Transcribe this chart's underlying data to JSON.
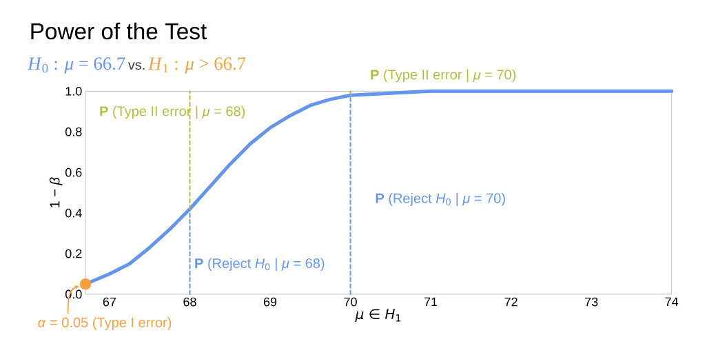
{
  "chart_data": {
    "type": "line",
    "title": "Power of the Test",
    "xlabel": "*μ* ∈ *H*$_{1}$",
    "ylabel": "1 − *β*",
    "xlim": [
      66.7,
      74
    ],
    "ylim": [
      0,
      1.0
    ],
    "xticks": [
      67,
      68,
      69,
      70,
      71,
      72,
      73,
      74
    ],
    "yticks": [
      {
        "value": 0,
        "label": "0.0"
      },
      0.2,
      0.4,
      0.6,
      0.8,
      {
        "value": 1.0,
        "label": "1.0"
      }
    ],
    "annotations": [
      "*H*$_{0}$ : *μ* = 66.7",
      "vs.",
      "*H*$_{1}$ : *μ* > 66.7",
      {
        "text": "*α* = 0.05  (Type I error)",
        "x": 66.7,
        "y": 0.05
      },
      {
        "text": "**P** (Type II error | *μ* = 68)",
        "x": 68,
        "y": 0.71
      },
      {
        "text": "**P** (Reject *H*$_{0}$ | *μ* = 68)",
        "x": 68,
        "y": 0.21
      },
      {
        "text": "**P** (Type II error | *μ* = 70)",
        "x": 70,
        "y": 0.985
      },
      {
        "text": "**P** (Reject *H*$_{0}$ | *μ* = 70)",
        "x": 70,
        "y": 0.485
      }
    ],
    "series": [
      {
        "color": "#6495ed",
        "x": [
          66.7,
          67.0,
          67.25,
          67.5,
          67.75,
          68.0,
          68.25,
          68.5,
          68.75,
          69.0,
          69.25,
          69.5,
          69.75,
          70.0,
          70.5,
          71.0,
          72.0,
          73.0,
          74.0
        ],
        "values": [
          0.05,
          0.1,
          0.15,
          0.23,
          0.32,
          0.42,
          0.53,
          0.64,
          0.74,
          0.82,
          0.88,
          0.93,
          0.96,
          0.98,
          0.99,
          1.0,
          1.0,
          1.0,
          1.0
        ]
      },
      {
        "type": "scatter",
        "color": "#f5a040",
        "x": [
          66.7
        ],
        "values": [
          0.05
        ]
      },
      {
        "line_style": "dashed",
        "color": "#6495ed",
        "x": [
          68,
          68
        ],
        "values": [
          0,
          0.42
        ]
      },
      {
        "line_style": "dashed",
        "color": "#b5bd3c",
        "x": [
          68,
          68
        ],
        "values": [
          0.42,
          1.0
        ]
      },
      {
        "line_style": "dashed",
        "color": "#6495ed",
        "x": [
          70,
          70
        ],
        "values": [
          0,
          0.98
        ]
      },
      {
        "line_style": "solid",
        "color": "#b5bd3c",
        "x": [
          70,
          70
        ],
        "values": [
          0.98,
          1.0
        ]
      }
    ]
  }
}
